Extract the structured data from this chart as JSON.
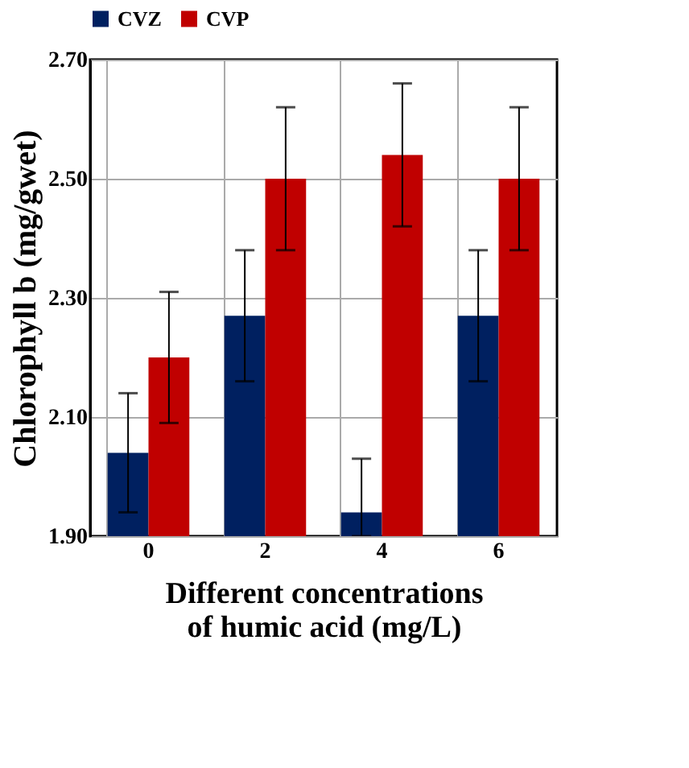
{
  "chart_data": {
    "type": "bar",
    "xlabel": "Different concentrations\nof humic acid (mg/L)",
    "ylabel": "Chlorophyll  b (mg/gwet)",
    "categories": [
      "0",
      "2",
      "4",
      "6"
    ],
    "series": [
      {
        "name": "CVZ",
        "color": "#002060",
        "values": [
          2.04,
          2.27,
          1.94,
          2.27
        ],
        "errors": [
          0.1,
          0.11,
          [
            1.9,
            2.03
          ],
          0.11
        ]
      },
      {
        "name": "CVP",
        "color": "#c00000",
        "values": [
          2.2,
          2.5,
          2.54,
          2.5
        ],
        "errors": [
          0.11,
          0.12,
          0.12,
          0.12
        ]
      }
    ],
    "ylim": [
      1.9,
      2.7
    ],
    "yticks": [
      {
        "value": 1.9,
        "label": "1.90"
      },
      {
        "value": 2.1,
        "label": "2.10"
      },
      {
        "value": 2.3,
        "label": "2.30"
      },
      {
        "value": 2.5,
        "label": "2.50"
      },
      {
        "value": 2.7,
        "label": "2.70"
      }
    ],
    "grid": true,
    "legend": "top"
  }
}
